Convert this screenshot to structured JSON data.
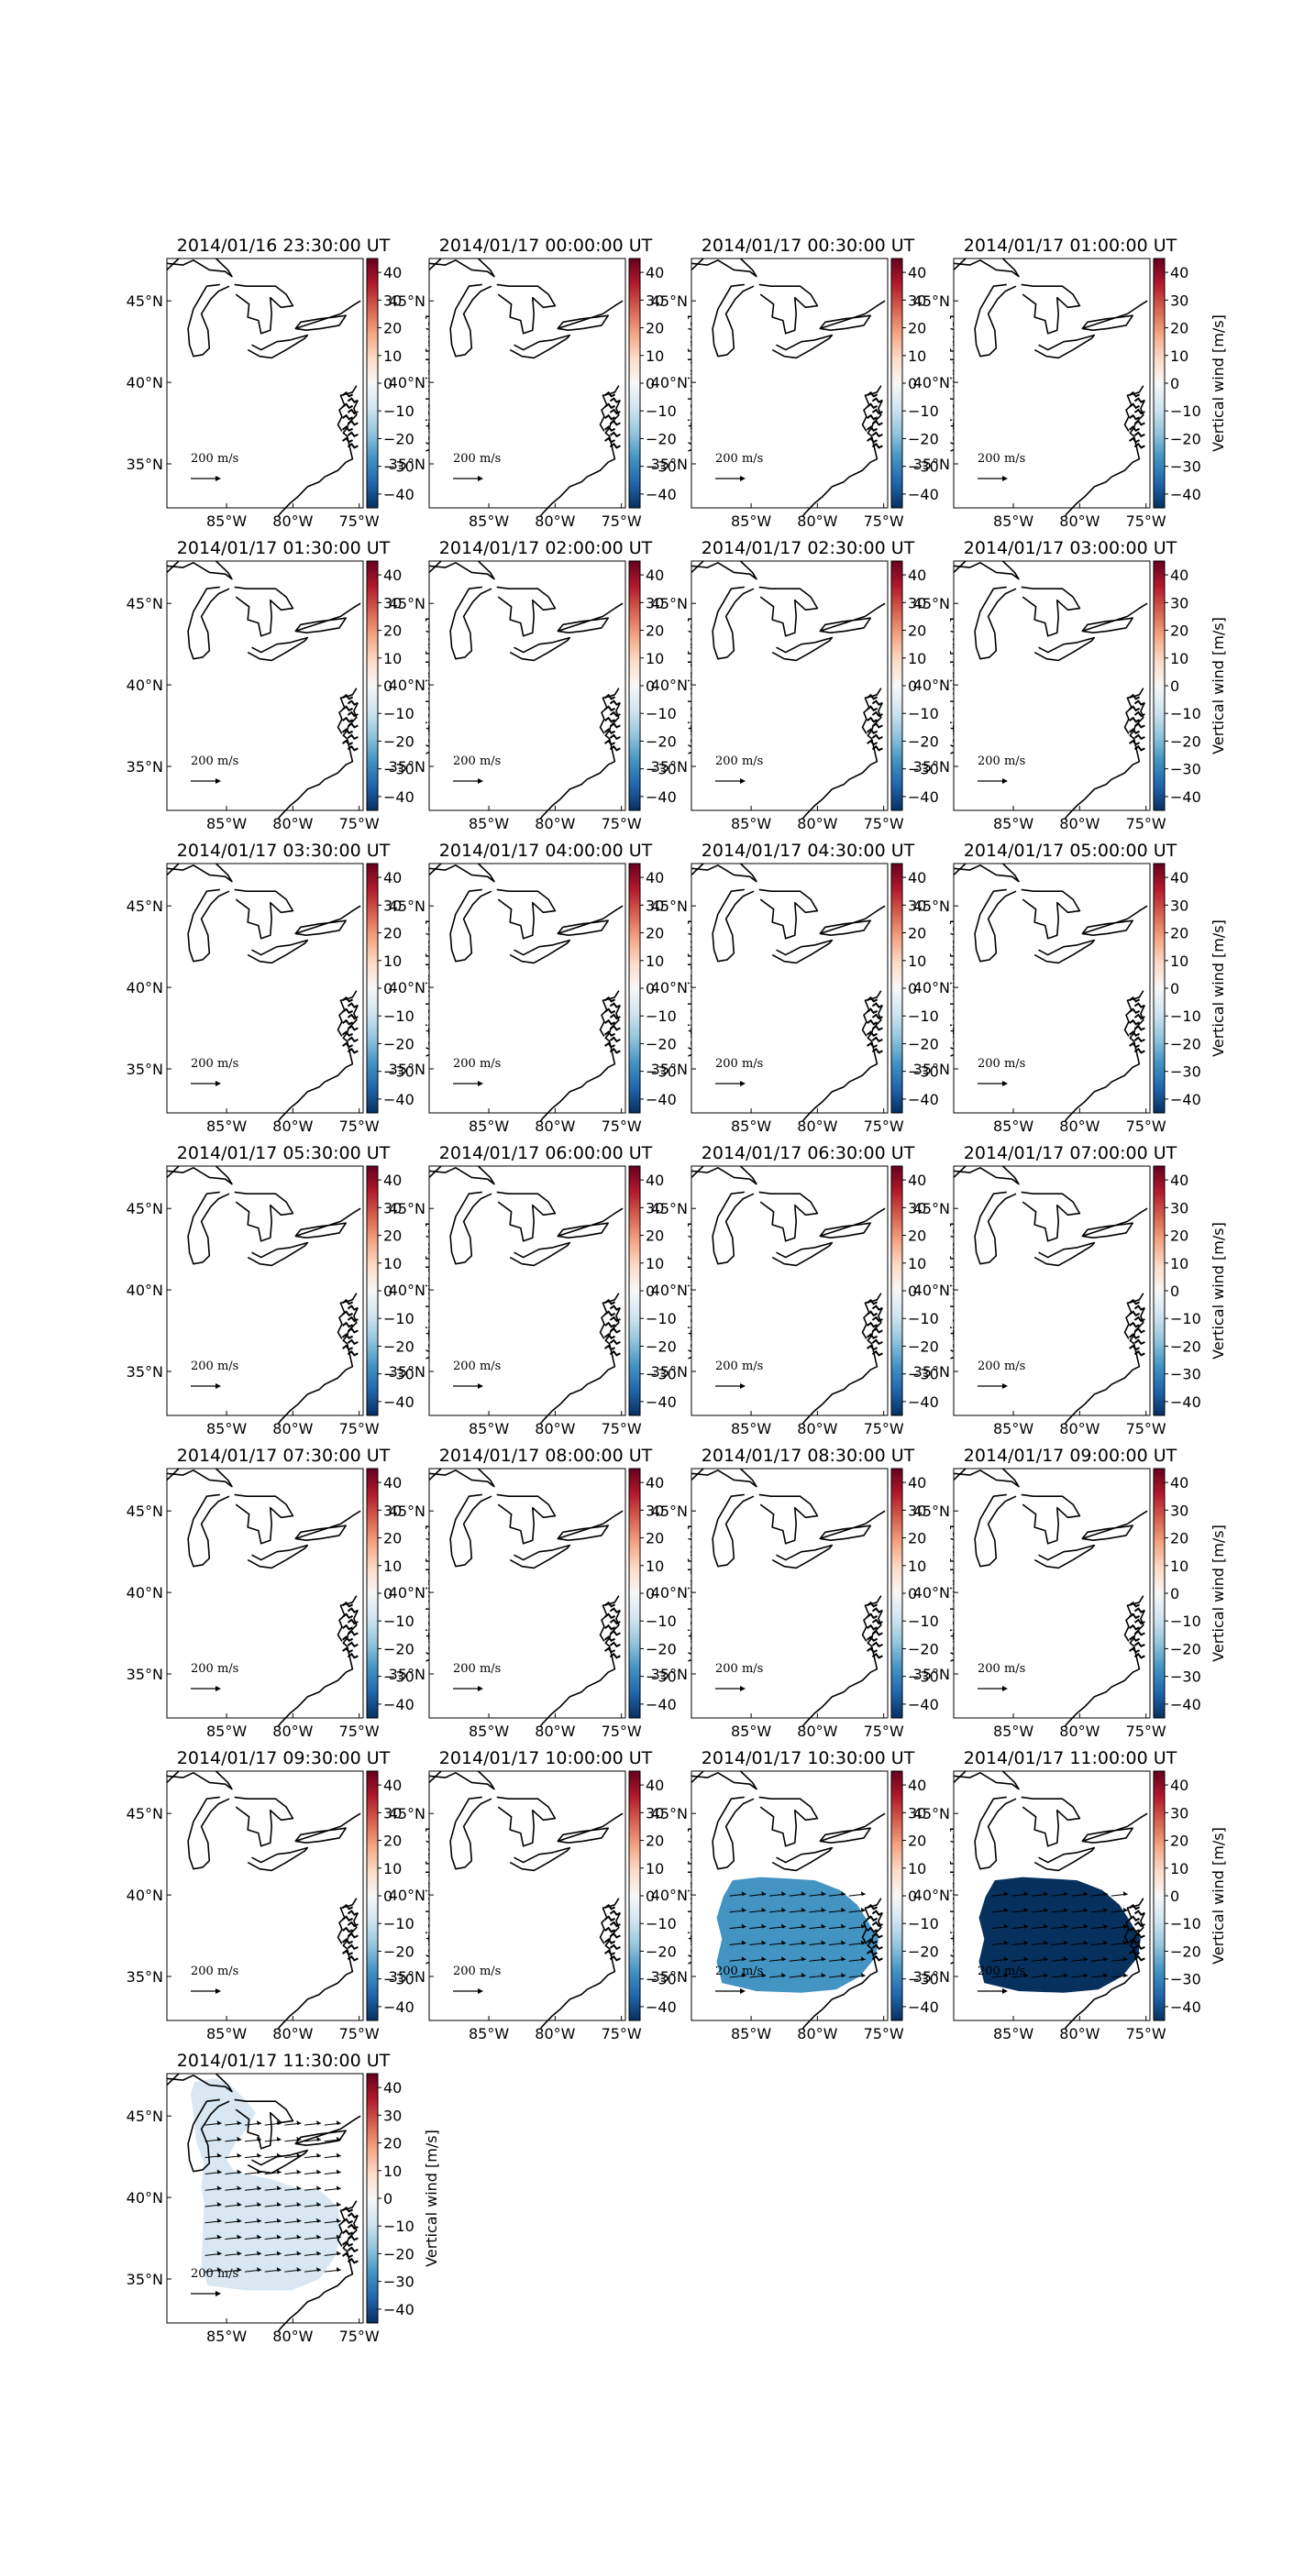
{
  "figure": {
    "chart_data": {
      "type": "heatmap",
      "description_units": "Vertical wind [m/s]",
      "colorbar": {
        "label": "Vertical wind [m/s]",
        "range": [
          -45,
          45
        ],
        "ticks": [
          "40",
          "30",
          "20",
          "10",
          "0",
          "−10",
          "−20",
          "−30",
          "−40"
        ],
        "tick_values": [
          40,
          30,
          20,
          10,
          0,
          -10,
          -20,
          -30,
          -40
        ],
        "colormap": "RdBu_r"
      },
      "map": {
        "region": "Great Lakes / US East Coast",
        "lon_range": [
          -89.5,
          -74.7
        ],
        "lat_range": [
          32.3,
          47.6
        ],
        "x_ticks": [
          "85°W",
          "80°W",
          "75°W"
        ],
        "x_tick_values": [
          -85,
          -80,
          -75
        ],
        "y_ticks": [
          "45°N",
          "40°N",
          "35°N"
        ],
        "y_tick_values": [
          45,
          40,
          35
        ],
        "vector_scale_label": "200 m/s"
      },
      "panels": [
        {
          "title": "2014/01/16 23:30:00 UT",
          "field_value": null
        },
        {
          "title": "2014/01/17 00:00:00 UT",
          "field_value": null
        },
        {
          "title": "2014/01/17 00:30:00 UT",
          "field_value": null
        },
        {
          "title": "2014/01/17 01:00:00 UT",
          "field_value": null
        },
        {
          "title": "2014/01/17 01:30:00 UT",
          "field_value": null
        },
        {
          "title": "2014/01/17 02:00:00 UT",
          "field_value": null
        },
        {
          "title": "2014/01/17 02:30:00 UT",
          "field_value": null
        },
        {
          "title": "2014/01/17 03:00:00 UT",
          "field_value": null
        },
        {
          "title": "2014/01/17 03:30:00 UT",
          "field_value": null
        },
        {
          "title": "2014/01/17 04:00:00 UT",
          "field_value": null
        },
        {
          "title": "2014/01/17 04:30:00 UT",
          "field_value": null
        },
        {
          "title": "2014/01/17 05:00:00 UT",
          "field_value": null
        },
        {
          "title": "2014/01/17 05:30:00 UT",
          "field_value": null
        },
        {
          "title": "2014/01/17 06:00:00 UT",
          "field_value": null
        },
        {
          "title": "2014/01/17 06:30:00 UT",
          "field_value": null
        },
        {
          "title": "2014/01/17 07:00:00 UT",
          "field_value": null
        },
        {
          "title": "2014/01/17 07:30:00 UT",
          "field_value": null
        },
        {
          "title": "2014/01/17 08:00:00 UT",
          "field_value": null
        },
        {
          "title": "2014/01/17 08:30:00 UT",
          "field_value": null
        },
        {
          "title": "2014/01/17 09:00:00 UT",
          "field_value": null
        },
        {
          "title": "2014/01/17 09:30:00 UT",
          "field_value": null
        },
        {
          "title": "2014/01/17 10:00:00 UT",
          "field_value": null
        },
        {
          "title": "2014/01/17 10:30:00 UT",
          "field_value": -25,
          "field_color": "#4393c3",
          "region": "south"
        },
        {
          "title": "2014/01/17 11:00:00 UT",
          "field_value": -44,
          "field_color": "#08305d",
          "region": "south"
        },
        {
          "title": "2014/01/17 11:30:00 UT",
          "field_value": -5,
          "field_color": "#d8e7f1",
          "region": "full"
        }
      ]
    }
  }
}
